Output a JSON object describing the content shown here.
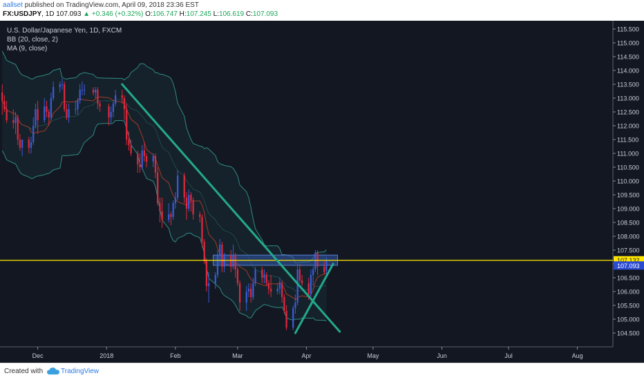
{
  "header": {
    "author": "aallset",
    "published": "published on TradingView.com, April 09, 2018 23:36 EST",
    "symbol": "FX:USDJPY",
    "interval": ", 1D",
    "last": "107.093",
    "change": "+0.346 (+0.32%)",
    "open_label": "O:",
    "open": "106.747",
    "high_label": "H:",
    "high": "107.245",
    "low_label": "L:",
    "low": "106.619",
    "close_label": "C:",
    "close": "107.093"
  },
  "legend": {
    "title": "U.S. Dollar/Japanese Yen, 1D, FXCM",
    "bb": "BB (20, close, 2)",
    "ma": "MA (9, close)"
  },
  "footer": {
    "created": "Created with",
    "brand": "TradingView"
  },
  "colors": {
    "up": "#3a5bd9",
    "down": "#e0283c",
    "bb": "#2e8b84",
    "ma": "#a33a2a",
    "trend": "#24a98a",
    "level": "#ffe600",
    "zone": "#2f56a8"
  },
  "chart_data": {
    "type": "candlestick",
    "title": "U.S. Dollar/Japanese Yen, 1D, FXCM",
    "yticks": [
      "115.500",
      "115.000",
      "114.500",
      "114.000",
      "113.500",
      "113.000",
      "112.500",
      "112.000",
      "111.500",
      "111.000",
      "110.500",
      "110.000",
      "109.500",
      "109.000",
      "108.500",
      "108.000",
      "107.500",
      "107.000",
      "106.500",
      "106.000",
      "105.500",
      "105.000",
      "104.500"
    ],
    "ylim": [
      104.0,
      115.8
    ],
    "xticks": [
      {
        "label": "Dec",
        "date": "2017-12-01"
      },
      {
        "label": "2018",
        "date": "2018-01-01"
      },
      {
        "label": "Feb",
        "date": "2018-02-01"
      },
      {
        "label": "Mar",
        "date": "2018-03-01"
      },
      {
        "label": "Apr",
        "date": "2018-04-01"
      },
      {
        "label": "May",
        "date": "2018-05-01"
      },
      {
        "label": "Jun",
        "date": "2018-06-01"
      },
      {
        "label": "Jul",
        "date": "2018-07-01"
      },
      {
        "label": "Aug",
        "date": "2018-08-01"
      }
    ],
    "xlim": [
      "2017-11-14",
      "2018-08-17"
    ],
    "price_labels": {
      "level": "107.132",
      "last": "107.093"
    },
    "horizontal_level": 107.132,
    "zone": {
      "from": "2018-02-18",
      "to": "2018-04-15",
      "low": 106.95,
      "high": 107.32
    },
    "trendlines": [
      {
        "from": [
          "2018-01-08",
          113.5
        ],
        "to": [
          "2018-04-16",
          104.55
        ]
      },
      {
        "from": [
          "2018-03-27",
          104.5
        ],
        "to": [
          "2018-04-13",
          107.0
        ]
      }
    ],
    "candles": [
      {
        "d": "2017-11-15",
        "o": 113.2,
        "h": 113.5,
        "l": 112.4,
        "c": 112.9
      },
      {
        "d": "2017-11-16",
        "o": 112.9,
        "h": 113.1,
        "l": 112.5,
        "c": 112.6
      },
      {
        "d": "2017-11-17",
        "o": 112.6,
        "h": 112.9,
        "l": 112.1,
        "c": 112.2
      },
      {
        "d": "2017-11-20",
        "o": 112.2,
        "h": 112.6,
        "l": 111.9,
        "c": 112.1
      },
      {
        "d": "2017-11-21",
        "o": 112.1,
        "h": 112.5,
        "l": 111.7,
        "c": 112.3
      },
      {
        "d": "2017-11-22",
        "o": 112.3,
        "h": 112.4,
        "l": 111.3,
        "c": 111.5
      },
      {
        "d": "2017-11-23",
        "o": 111.5,
        "h": 111.7,
        "l": 111.1,
        "c": 111.2
      },
      {
        "d": "2017-11-24",
        "o": 111.2,
        "h": 111.5,
        "l": 110.9,
        "c": 111.5
      },
      {
        "d": "2017-11-27",
        "o": 111.5,
        "h": 111.6,
        "l": 111.0,
        "c": 111.2
      },
      {
        "d": "2017-11-28",
        "o": 111.2,
        "h": 111.6,
        "l": 111.0,
        "c": 111.4
      },
      {
        "d": "2017-11-29",
        "o": 111.4,
        "h": 112.3,
        "l": 111.3,
        "c": 112.0
      },
      {
        "d": "2017-11-30",
        "o": 112.0,
        "h": 112.8,
        "l": 111.9,
        "c": 112.6
      },
      {
        "d": "2017-12-01",
        "o": 112.6,
        "h": 112.9,
        "l": 111.7,
        "c": 112.2
      },
      {
        "d": "2017-12-04",
        "o": 112.2,
        "h": 113.0,
        "l": 112.1,
        "c": 112.7
      },
      {
        "d": "2017-12-05",
        "o": 112.7,
        "h": 112.9,
        "l": 112.3,
        "c": 112.5
      },
      {
        "d": "2017-12-06",
        "o": 112.5,
        "h": 112.6,
        "l": 112.0,
        "c": 112.3
      },
      {
        "d": "2017-12-07",
        "o": 112.3,
        "h": 113.2,
        "l": 112.2,
        "c": 113.0
      },
      {
        "d": "2017-12-08",
        "o": 113.0,
        "h": 113.6,
        "l": 112.9,
        "c": 113.4
      },
      {
        "d": "2017-12-11",
        "o": 113.4,
        "h": 113.6,
        "l": 113.2,
        "c": 113.5
      },
      {
        "d": "2017-12-12",
        "o": 113.5,
        "h": 113.7,
        "l": 113.3,
        "c": 113.5
      },
      {
        "d": "2017-12-13",
        "o": 113.5,
        "h": 113.6,
        "l": 112.5,
        "c": 112.6
      },
      {
        "d": "2017-12-14",
        "o": 112.6,
        "h": 112.8,
        "l": 112.2,
        "c": 112.3
      },
      {
        "d": "2017-12-15",
        "o": 112.3,
        "h": 112.8,
        "l": 112.1,
        "c": 112.6
      },
      {
        "d": "2017-12-18",
        "o": 112.6,
        "h": 112.9,
        "l": 112.4,
        "c": 112.6
      },
      {
        "d": "2017-12-19",
        "o": 112.6,
        "h": 113.0,
        "l": 112.4,
        "c": 112.9
      },
      {
        "d": "2017-12-20",
        "o": 112.9,
        "h": 113.5,
        "l": 112.8,
        "c": 113.3
      },
      {
        "d": "2017-12-21",
        "o": 113.3,
        "h": 113.6,
        "l": 113.1,
        "c": 113.3
      },
      {
        "d": "2017-12-22",
        "o": 113.3,
        "h": 113.5,
        "l": 113.1,
        "c": 113.3
      },
      {
        "d": "2017-12-26",
        "o": 113.3,
        "h": 113.4,
        "l": 113.1,
        "c": 113.2
      },
      {
        "d": "2017-12-27",
        "o": 113.2,
        "h": 113.4,
        "l": 113.0,
        "c": 113.3
      },
      {
        "d": "2017-12-28",
        "o": 113.3,
        "h": 113.4,
        "l": 112.6,
        "c": 112.8
      },
      {
        "d": "2017-12-29",
        "o": 112.8,
        "h": 112.9,
        "l": 112.5,
        "c": 112.7
      },
      {
        "d": "2018-01-02",
        "o": 112.7,
        "h": 112.8,
        "l": 112.0,
        "c": 112.3
      },
      {
        "d": "2018-01-03",
        "o": 112.3,
        "h": 112.7,
        "l": 112.1,
        "c": 112.5
      },
      {
        "d": "2018-01-04",
        "o": 112.5,
        "h": 112.9,
        "l": 112.3,
        "c": 112.8
      },
      {
        "d": "2018-01-05",
        "o": 112.8,
        "h": 113.3,
        "l": 112.7,
        "c": 113.1
      },
      {
        "d": "2018-01-08",
        "o": 113.1,
        "h": 113.3,
        "l": 112.8,
        "c": 113.0
      },
      {
        "d": "2018-01-09",
        "o": 113.0,
        "h": 113.1,
        "l": 112.2,
        "c": 112.6
      },
      {
        "d": "2018-01-10",
        "o": 112.6,
        "h": 112.8,
        "l": 111.3,
        "c": 111.5
      },
      {
        "d": "2018-01-11",
        "o": 111.5,
        "h": 111.8,
        "l": 111.1,
        "c": 111.3
      },
      {
        "d": "2018-01-12",
        "o": 111.3,
        "h": 111.5,
        "l": 110.9,
        "c": 111.0
      },
      {
        "d": "2018-01-15",
        "o": 111.0,
        "h": 111.1,
        "l": 110.3,
        "c": 110.6
      },
      {
        "d": "2018-01-16",
        "o": 110.6,
        "h": 111.0,
        "l": 110.3,
        "c": 110.5
      },
      {
        "d": "2018-01-17",
        "o": 110.5,
        "h": 111.3,
        "l": 110.4,
        "c": 111.1
      },
      {
        "d": "2018-01-18",
        "o": 111.1,
        "h": 111.4,
        "l": 110.7,
        "c": 110.9
      },
      {
        "d": "2018-01-19",
        "o": 110.9,
        "h": 111.0,
        "l": 110.5,
        "c": 110.7
      },
      {
        "d": "2018-01-22",
        "o": 110.7,
        "h": 111.0,
        "l": 110.5,
        "c": 110.9
      },
      {
        "d": "2018-01-23",
        "o": 110.9,
        "h": 111.0,
        "l": 110.1,
        "c": 110.3
      },
      {
        "d": "2018-01-24",
        "o": 110.3,
        "h": 110.5,
        "l": 109.1,
        "c": 109.2
      },
      {
        "d": "2018-01-25",
        "o": 109.2,
        "h": 109.4,
        "l": 108.5,
        "c": 108.9
      },
      {
        "d": "2018-01-26",
        "o": 108.9,
        "h": 109.4,
        "l": 108.3,
        "c": 108.6
      },
      {
        "d": "2018-01-29",
        "o": 108.6,
        "h": 109.2,
        "l": 108.5,
        "c": 108.8
      },
      {
        "d": "2018-01-30",
        "o": 108.8,
        "h": 108.9,
        "l": 108.4,
        "c": 108.7
      },
      {
        "d": "2018-01-31",
        "o": 108.7,
        "h": 109.3,
        "l": 108.6,
        "c": 109.2
      },
      {
        "d": "2018-02-01",
        "o": 109.2,
        "h": 109.6,
        "l": 109.0,
        "c": 109.4
      },
      {
        "d": "2018-02-02",
        "o": 109.4,
        "h": 110.4,
        "l": 109.3,
        "c": 110.2
      },
      {
        "d": "2018-02-05",
        "o": 110.2,
        "h": 110.3,
        "l": 109.2,
        "c": 109.4
      },
      {
        "d": "2018-02-06",
        "o": 109.4,
        "h": 109.6,
        "l": 108.6,
        "c": 109.0
      },
      {
        "d": "2018-02-07",
        "o": 109.0,
        "h": 109.7,
        "l": 108.9,
        "c": 109.5
      },
      {
        "d": "2018-02-08",
        "o": 109.5,
        "h": 109.6,
        "l": 108.9,
        "c": 109.3
      },
      {
        "d": "2018-02-09",
        "o": 109.3,
        "h": 109.4,
        "l": 108.6,
        "c": 108.8
      },
      {
        "d": "2018-02-12",
        "o": 108.8,
        "h": 108.9,
        "l": 108.5,
        "c": 108.7
      },
      {
        "d": "2018-02-13",
        "o": 108.7,
        "h": 108.8,
        "l": 107.6,
        "c": 107.8
      },
      {
        "d": "2018-02-14",
        "o": 107.8,
        "h": 107.9,
        "l": 107.0,
        "c": 107.1
      },
      {
        "d": "2018-02-15",
        "o": 107.1,
        "h": 107.2,
        "l": 106.0,
        "c": 106.2
      },
      {
        "d": "2018-02-16",
        "o": 106.2,
        "h": 106.7,
        "l": 105.6,
        "c": 106.3
      },
      {
        "d": "2018-02-19",
        "o": 106.3,
        "h": 106.7,
        "l": 106.1,
        "c": 106.6
      },
      {
        "d": "2018-02-20",
        "o": 106.6,
        "h": 107.5,
        "l": 106.5,
        "c": 107.3
      },
      {
        "d": "2018-02-21",
        "o": 107.3,
        "h": 107.9,
        "l": 107.0,
        "c": 107.7
      },
      {
        "d": "2018-02-22",
        "o": 107.7,
        "h": 107.8,
        "l": 106.7,
        "c": 106.9
      },
      {
        "d": "2018-02-23",
        "o": 106.9,
        "h": 107.4,
        "l": 106.7,
        "c": 107.3
      },
      {
        "d": "2018-02-26",
        "o": 107.3,
        "h": 107.5,
        "l": 106.7,
        "c": 106.9
      },
      {
        "d": "2018-02-27",
        "o": 106.9,
        "h": 107.7,
        "l": 106.8,
        "c": 107.3
      },
      {
        "d": "2018-02-28",
        "o": 107.3,
        "h": 107.4,
        "l": 106.5,
        "c": 106.8
      },
      {
        "d": "2018-03-01",
        "o": 106.8,
        "h": 106.9,
        "l": 106.2,
        "c": 106.3
      },
      {
        "d": "2018-03-02",
        "o": 106.3,
        "h": 106.4,
        "l": 105.3,
        "c": 105.6
      },
      {
        "d": "2018-03-05",
        "o": 105.6,
        "h": 106.2,
        "l": 105.3,
        "c": 106.0
      },
      {
        "d": "2018-03-06",
        "o": 106.0,
        "h": 106.3,
        "l": 105.8,
        "c": 106.1
      },
      {
        "d": "2018-03-07",
        "o": 106.1,
        "h": 106.3,
        "l": 105.6,
        "c": 105.8
      },
      {
        "d": "2018-03-08",
        "o": 105.8,
        "h": 106.5,
        "l": 105.7,
        "c": 106.3
      },
      {
        "d": "2018-03-09",
        "o": 106.3,
        "h": 106.9,
        "l": 106.2,
        "c": 106.8
      },
      {
        "d": "2018-03-12",
        "o": 106.8,
        "h": 106.9,
        "l": 106.3,
        "c": 106.5
      },
      {
        "d": "2018-03-13",
        "o": 106.5,
        "h": 106.8,
        "l": 106.3,
        "c": 106.6
      },
      {
        "d": "2018-03-14",
        "o": 106.6,
        "h": 106.7,
        "l": 106.2,
        "c": 106.3
      },
      {
        "d": "2018-03-15",
        "o": 106.3,
        "h": 106.4,
        "l": 105.9,
        "c": 106.1
      },
      {
        "d": "2018-03-16",
        "o": 106.1,
        "h": 106.6,
        "l": 105.8,
        "c": 106.0
      },
      {
        "d": "2018-03-19",
        "o": 106.0,
        "h": 106.3,
        "l": 105.9,
        "c": 106.1
      },
      {
        "d": "2018-03-20",
        "o": 106.1,
        "h": 106.5,
        "l": 105.9,
        "c": 106.3
      },
      {
        "d": "2018-03-21",
        "o": 106.3,
        "h": 106.4,
        "l": 105.6,
        "c": 105.8
      },
      {
        "d": "2018-03-22",
        "o": 105.8,
        "h": 105.9,
        "l": 105.2,
        "c": 105.3
      },
      {
        "d": "2018-03-23",
        "o": 105.3,
        "h": 105.5,
        "l": 104.6,
        "c": 104.7
      },
      {
        "d": "2018-03-26",
        "o": 104.7,
        "h": 105.5,
        "l": 104.6,
        "c": 105.4
      },
      {
        "d": "2018-03-27",
        "o": 105.4,
        "h": 105.9,
        "l": 105.2,
        "c": 105.6
      },
      {
        "d": "2018-03-28",
        "o": 105.6,
        "h": 107.0,
        "l": 105.5,
        "c": 106.8
      },
      {
        "d": "2018-03-29",
        "o": 106.8,
        "h": 107.0,
        "l": 106.3,
        "c": 106.4
      },
      {
        "d": "2018-03-30",
        "o": 106.4,
        "h": 106.6,
        "l": 106.2,
        "c": 106.3
      },
      {
        "d": "2018-04-02",
        "o": 106.3,
        "h": 106.5,
        "l": 105.7,
        "c": 105.9
      },
      {
        "d": "2018-04-03",
        "o": 105.9,
        "h": 106.8,
        "l": 105.8,
        "c": 106.6
      },
      {
        "d": "2018-04-04",
        "o": 106.6,
        "h": 106.9,
        "l": 106.2,
        "c": 106.8
      },
      {
        "d": "2018-04-05",
        "o": 106.8,
        "h": 107.5,
        "l": 106.7,
        "c": 107.4
      },
      {
        "d": "2018-04-06",
        "o": 107.4,
        "h": 107.5,
        "l": 106.6,
        "c": 106.9
      },
      {
        "d": "2018-04-09",
        "o": 106.9,
        "h": 107.1,
        "l": 106.6,
        "c": 106.7
      },
      {
        "d": "2018-04-10",
        "o": 106.747,
        "h": 107.245,
        "l": 106.619,
        "c": 107.093
      }
    ]
  }
}
